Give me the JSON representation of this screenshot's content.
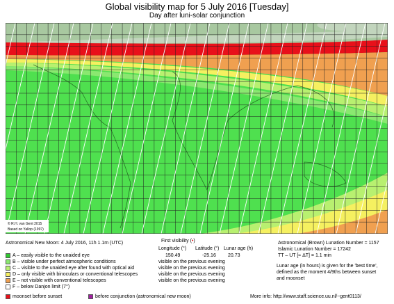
{
  "header": {
    "title": "Global visibility map for 5 July 2016 [Tuesday]",
    "subtitle": "Day after luni-solar conjunction"
  },
  "map": {
    "credits": [
      "© R.H. van Gent 2015",
      "Based on Yallop (1997)"
    ]
  },
  "info": {
    "new_moon": "Astronomical New Moon: 4 July 2016, 11h 1.1m (UTC)"
  },
  "first_visibility": {
    "label": "First visibility (",
    "label_end": ")",
    "columns": [
      "Longitude (°)",
      "Latitude (°)",
      "Lunar age (h)"
    ],
    "values": [
      "150.49",
      "-25.16",
      "20.73"
    ]
  },
  "legend": {
    "items": [
      {
        "label": "A – easily visible to the unaided eye"
      },
      {
        "label": "B – visible under perfect atmospheric conditions",
        "note": "visible on the previous evening"
      },
      {
        "label": "C – visible to the unaided eye after found with optical aid",
        "note": "visible on the previous evening"
      },
      {
        "label": "D – only visible with binoculars or conventional telescopes",
        "note": "visible on the previous evening"
      },
      {
        "label": "E – not visible with conventional telescopes",
        "note": "visible on the previous evening"
      },
      {
        "label": "F – below Danjon limit (7°)"
      }
    ]
  },
  "notes": {
    "lines": [
      "Astronomical (Brown) Lunation Number = 1157",
      "Islamic Lunation Number = 17242",
      "TT – UT [≈ ΔT] = 1.1 min",
      "Lunar age (in hours) is given for the 'best time',",
      "defined as the moment 4/9ths between sunset",
      "and moonset"
    ]
  },
  "footer": {
    "keys": [
      "moonset before sunset",
      "before conjunction (astronomical new moon)"
    ],
    "more_info": "More info: http://www.staff.science.uu.nl/~gent0113/"
  }
}
